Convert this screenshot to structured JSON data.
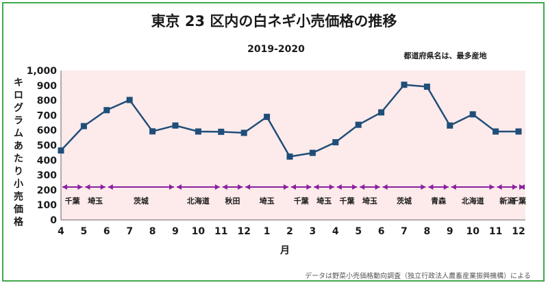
{
  "chart_data": {
    "type": "line",
    "title": "東京 23 区内の白ネギ小売価格の推移",
    "subtitle": "2019-2020",
    "note": "都道府県名は、最多産地",
    "ylabel": "キログラムあたり小売価格",
    "xlabel": "月",
    "source": "データは野菜小売価格動向調査（独立行政法人農畜産業振興機構）による",
    "ylim": [
      0,
      1000
    ],
    "yticks": [
      "0",
      "100",
      "200",
      "300",
      "400",
      "500",
      "600",
      "700",
      "800",
      "900",
      "1,000"
    ],
    "categories": [
      "4",
      "5",
      "6",
      "7",
      "8",
      "9",
      "10",
      "11",
      "12",
      "1",
      "2",
      "3",
      "4",
      "5",
      "6",
      "7",
      "8",
      "9",
      "10",
      "11",
      "12"
    ],
    "series": [
      {
        "values": [
          465,
          628,
          735,
          803,
          593,
          632,
          592,
          590,
          583,
          690,
          424,
          449,
          520,
          637,
          720,
          905,
          892,
          632,
          707,
          592,
          592
        ]
      }
    ],
    "regions": [
      {
        "label": "千葉",
        "from": 0,
        "to": 1
      },
      {
        "label": "埼玉",
        "from": 1,
        "to": 2
      },
      {
        "label": "茨城",
        "from": 2,
        "to": 5
      },
      {
        "label": "北海道",
        "from": 5,
        "to": 7
      },
      {
        "label": "秋田",
        "from": 7,
        "to": 8
      },
      {
        "label": "埼玉",
        "from": 8,
        "to": 10
      },
      {
        "label": "千葉",
        "from": 10,
        "to": 11
      },
      {
        "label": "埼玉",
        "from": 11,
        "to": 12
      },
      {
        "label": "千葉",
        "from": 12,
        "to": 13
      },
      {
        "label": "埼玉",
        "from": 13,
        "to": 14
      },
      {
        "label": "茨城",
        "from": 14,
        "to": 16
      },
      {
        "label": "青森",
        "from": 16,
        "to": 17
      },
      {
        "label": "北海道",
        "from": 17,
        "to": 19
      },
      {
        "label": "新潟",
        "from": 19,
        "to": 20
      },
      {
        "label": "千葉",
        "from": 20,
        "to": 20.6
      }
    ],
    "colors": {
      "line": "#1f4e79",
      "plot_background": "#fdeaea",
      "region_arrow": "#8b1fa0",
      "border": "#3fa84a"
    },
    "grid": false
  }
}
